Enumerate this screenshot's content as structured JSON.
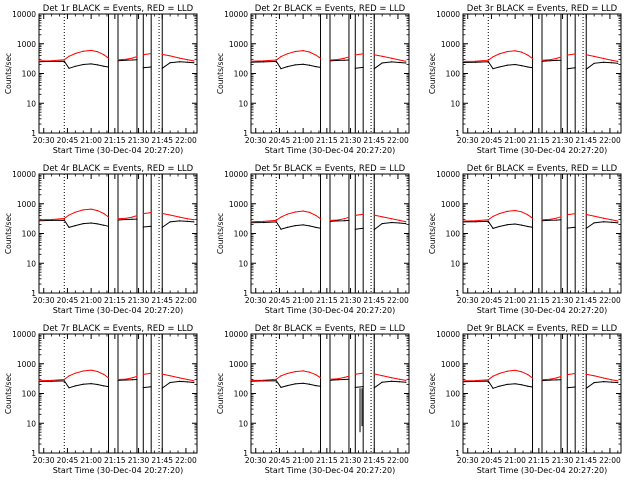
{
  "colors": {
    "events": "#000000",
    "lld": "#ff0000",
    "axes": "#000000",
    "background": "#ffffff"
  },
  "chart_data": [
    {
      "type": "line",
      "title": "Det 1r BLACK = Events, RED = LLD",
      "xlabel": "Start Time (30-Dec-04 20:27:20)",
      "ylabel": "Counts/sec",
      "x_ticks": [
        "20:30",
        "20:45",
        "21:00",
        "21:15",
        "21:30",
        "21:45",
        "22:00"
      ],
      "y_ticks": [
        "1",
        "10",
        "100",
        "1000",
        "10000"
      ],
      "y_scale": "log",
      "ylim": [
        1,
        10000
      ],
      "xlim": [
        "20:27",
        "22:07"
      ],
      "dotted_time_markers": [
        "20:43",
        "21:43"
      ],
      "gap_intervals": [
        [
          "21:11",
          "21:17"
        ],
        [
          "21:29",
          "21:33"
        ],
        [
          "21:38",
          "21:45"
        ]
      ],
      "x": [
        "20:27",
        "20:35",
        "20:43",
        "20:46",
        "20:50",
        "20:55",
        "21:00",
        "21:04",
        "21:08",
        "21:11",
        "21:17",
        "21:22",
        "21:26",
        "21:29",
        "21:33",
        "21:38",
        "21:45",
        "21:50",
        "21:56",
        "22:01",
        "22:05"
      ],
      "series": [
        {
          "name": "Events",
          "color": "#000000",
          "values": [
            250,
            255,
            260,
            150,
            175,
            200,
            210,
            195,
            175,
            165,
            270,
            280,
            285,
            290,
            155,
            165,
            150,
            230,
            250,
            240,
            230
          ]
        },
        {
          "name": "LLD",
          "color": "#ff0000",
          "values": [
            265,
            270,
            290,
            380,
            470,
            560,
            600,
            540,
            430,
            330,
            290,
            300,
            330,
            370,
            430,
            470,
            440,
            390,
            330,
            290,
            265
          ]
        }
      ]
    },
    {
      "type": "line",
      "title": "Det 2r BLACK = Events, RED = LLD",
      "xlabel": "Start Time (30-Dec-04 20:27:20)",
      "ylabel": "Counts/sec",
      "x_ticks": [
        "20:30",
        "20:45",
        "21:00",
        "21:15",
        "21:30",
        "21:45",
        "22:00"
      ],
      "y_ticks": [
        "1",
        "10",
        "100",
        "1000",
        "10000"
      ],
      "y_scale": "log",
      "ylim": [
        1,
        10000
      ],
      "xlim": [
        "20:27",
        "22:07"
      ],
      "dotted_time_markers": [
        "20:43",
        "21:43"
      ],
      "gap_intervals": [
        [
          "21:11",
          "21:17"
        ],
        [
          "21:29",
          "21:33"
        ],
        [
          "21:38",
          "21:45"
        ]
      ],
      "x": [
        "20:27",
        "20:35",
        "20:43",
        "20:46",
        "20:50",
        "20:55",
        "21:00",
        "21:04",
        "21:08",
        "21:11",
        "21:17",
        "21:22",
        "21:26",
        "21:29",
        "21:33",
        "21:38",
        "21:45",
        "21:50",
        "21:56",
        "22:01",
        "22:05"
      ],
      "series": [
        {
          "name": "Events",
          "color": "#000000",
          "values": [
            240,
            245,
            255,
            145,
            170,
            195,
            205,
            190,
            170,
            160,
            265,
            275,
            280,
            285,
            150,
            160,
            145,
            225,
            245,
            235,
            225
          ]
        },
        {
          "name": "LLD",
          "color": "#ff0000",
          "values": [
            260,
            265,
            285,
            370,
            460,
            550,
            590,
            530,
            420,
            325,
            285,
            295,
            325,
            365,
            420,
            460,
            430,
            380,
            325,
            285,
            260
          ]
        }
      ]
    },
    {
      "type": "line",
      "title": "Det 3r BLACK = Events, RED = LLD",
      "xlabel": "Start Time (30-Dec-04 20:27:20)",
      "ylabel": "Counts/sec",
      "x_ticks": [
        "20:30",
        "20:45",
        "21:00",
        "21:15",
        "21:30",
        "21:45",
        "22:00"
      ],
      "y_ticks": [
        "1",
        "10",
        "100",
        "1000",
        "10000"
      ],
      "y_scale": "log",
      "ylim": [
        1,
        10000
      ],
      "xlim": [
        "20:27",
        "22:07"
      ],
      "dotted_time_markers": [
        "20:43",
        "21:43"
      ],
      "gap_intervals": [
        [
          "21:11",
          "21:17"
        ],
        [
          "21:29",
          "21:33"
        ],
        [
          "21:38",
          "21:45"
        ]
      ],
      "x": [
        "20:27",
        "20:35",
        "20:43",
        "20:46",
        "20:50",
        "20:55",
        "21:00",
        "21:04",
        "21:08",
        "21:11",
        "21:17",
        "21:22",
        "21:26",
        "21:29",
        "21:33",
        "21:38",
        "21:45",
        "21:50",
        "21:56",
        "22:01",
        "22:05"
      ],
      "series": [
        {
          "name": "Events",
          "color": "#000000",
          "values": [
            235,
            240,
            250,
            145,
            165,
            190,
            200,
            185,
            165,
            155,
            260,
            270,
            275,
            280,
            145,
            155,
            140,
            220,
            240,
            230,
            220
          ]
        },
        {
          "name": "LLD",
          "color": "#ff0000",
          "values": [
            255,
            260,
            280,
            365,
            455,
            545,
            585,
            525,
            415,
            320,
            280,
            290,
            320,
            360,
            415,
            455,
            425,
            375,
            320,
            280,
            255
          ]
        }
      ]
    },
    {
      "type": "line",
      "title": "Det 4r BLACK = Events, RED = LLD",
      "xlabel": "Start Time (30-Dec-04 20:27:20)",
      "ylabel": "Counts/sec",
      "x_ticks": [
        "20:30",
        "20:45",
        "21:00",
        "21:15",
        "21:30",
        "21:45",
        "22:00"
      ],
      "y_ticks": [
        "1",
        "10",
        "100",
        "1000",
        "10000"
      ],
      "y_scale": "log",
      "ylim": [
        1,
        10000
      ],
      "xlim": [
        "20:27",
        "22:07"
      ],
      "dotted_time_markers": [
        "20:43",
        "21:43"
      ],
      "gap_intervals": [
        [
          "21:11",
          "21:17"
        ],
        [
          "21:29",
          "21:33"
        ],
        [
          "21:38",
          "21:45"
        ]
      ],
      "x": [
        "20:27",
        "20:35",
        "20:43",
        "20:46",
        "20:50",
        "20:55",
        "21:00",
        "21:04",
        "21:08",
        "21:11",
        "21:17",
        "21:22",
        "21:26",
        "21:29",
        "21:33",
        "21:38",
        "21:45",
        "21:50",
        "21:56",
        "22:01",
        "22:05"
      ],
      "series": [
        {
          "name": "Events",
          "color": "#000000",
          "values": [
            270,
            275,
            280,
            160,
            185,
            215,
            225,
            210,
            190,
            175,
            285,
            295,
            300,
            305,
            165,
            175,
            160,
            245,
            265,
            255,
            245
          ]
        },
        {
          "name": "LLD",
          "color": "#ff0000",
          "values": [
            290,
            295,
            320,
            420,
            520,
            620,
            660,
            590,
            470,
            360,
            315,
            325,
            355,
            400,
            465,
            505,
            470,
            420,
            355,
            315,
            290
          ]
        }
      ]
    },
    {
      "type": "line",
      "title": "Det 5r BLACK = Events, RED = LLD",
      "xlabel": "Start Time (30-Dec-04 20:27:20)",
      "ylabel": "Counts/sec",
      "x_ticks": [
        "20:30",
        "20:45",
        "21:00",
        "21:15",
        "21:30",
        "21:45",
        "22:00"
      ],
      "y_ticks": [
        "1",
        "10",
        "100",
        "1000",
        "10000"
      ],
      "y_scale": "log",
      "ylim": [
        1,
        10000
      ],
      "xlim": [
        "20:27",
        "22:07"
      ],
      "dotted_time_markers": [
        "20:43",
        "21:43"
      ],
      "gap_intervals": [
        [
          "21:11",
          "21:17"
        ],
        [
          "21:29",
          "21:33"
        ],
        [
          "21:38",
          "21:45"
        ]
      ],
      "x": [
        "20:27",
        "20:35",
        "20:43",
        "20:46",
        "20:50",
        "20:55",
        "21:00",
        "21:04",
        "21:08",
        "21:11",
        "21:17",
        "21:22",
        "21:26",
        "21:29",
        "21:33",
        "21:38",
        "21:45",
        "21:50",
        "21:56",
        "22:01",
        "22:05"
      ],
      "series": [
        {
          "name": "Events",
          "color": "#000000",
          "values": [
            230,
            235,
            245,
            140,
            160,
            185,
            195,
            180,
            160,
            150,
            255,
            265,
            270,
            275,
            140,
            150,
            135,
            215,
            235,
            225,
            215
          ]
        },
        {
          "name": "LLD",
          "color": "#ff0000",
          "values": [
            250,
            255,
            275,
            355,
            445,
            530,
            570,
            510,
            405,
            315,
            275,
            285,
            315,
            350,
            405,
            445,
            415,
            365,
            315,
            275,
            250
          ]
        }
      ]
    },
    {
      "type": "line",
      "title": "Det 6r BLACK = Events, RED = LLD",
      "xlabel": "Start Time (30-Dec-04 20:27:20)",
      "ylabel": "Counts/sec",
      "x_ticks": [
        "20:30",
        "20:45",
        "21:00",
        "21:15",
        "21:30",
        "21:45",
        "22:00"
      ],
      "y_ticks": [
        "1",
        "10",
        "100",
        "1000",
        "10000"
      ],
      "y_scale": "log",
      "ylim": [
        1,
        10000
      ],
      "xlim": [
        "20:27",
        "22:07"
      ],
      "dotted_time_markers": [
        "20:43",
        "21:43"
      ],
      "gap_intervals": [
        [
          "21:11",
          "21:17"
        ],
        [
          "21:29",
          "21:33"
        ],
        [
          "21:38",
          "21:45"
        ]
      ],
      "x": [
        "20:27",
        "20:35",
        "20:43",
        "20:46",
        "20:50",
        "20:55",
        "21:00",
        "21:04",
        "21:08",
        "21:11",
        "21:17",
        "21:22",
        "21:26",
        "21:29",
        "21:33",
        "21:38",
        "21:45",
        "21:50",
        "21:56",
        "22:01",
        "22:05"
      ],
      "series": [
        {
          "name": "Events",
          "color": "#000000",
          "values": [
            245,
            250,
            258,
            148,
            172,
            198,
            208,
            192,
            172,
            162,
            268,
            278,
            283,
            288,
            152,
            162,
            148,
            228,
            248,
            238,
            228
          ]
        },
        {
          "name": "LLD",
          "color": "#ff0000",
          "values": [
            262,
            268,
            288,
            375,
            465,
            555,
            595,
            535,
            425,
            328,
            288,
            298,
            328,
            368,
            425,
            465,
            435,
            385,
            328,
            288,
            262
          ]
        }
      ]
    },
    {
      "type": "line",
      "title": "Det 7r BLACK = Events, RED = LLD",
      "xlabel": "Start Time (30-Dec-04 20:27:20)",
      "ylabel": "Counts/sec",
      "x_ticks": [
        "20:30",
        "20:45",
        "21:00",
        "21:15",
        "21:30",
        "21:45",
        "22:00"
      ],
      "y_ticks": [
        "1",
        "10",
        "100",
        "1000",
        "10000"
      ],
      "y_scale": "log",
      "ylim": [
        1,
        10000
      ],
      "xlim": [
        "20:27",
        "22:07"
      ],
      "dotted_time_markers": [
        "20:43",
        "21:43"
      ],
      "gap_intervals": [
        [
          "21:11",
          "21:17"
        ],
        [
          "21:29",
          "21:33"
        ],
        [
          "21:38",
          "21:45"
        ]
      ],
      "x": [
        "20:27",
        "20:35",
        "20:43",
        "20:46",
        "20:50",
        "20:55",
        "21:00",
        "21:04",
        "21:08",
        "21:11",
        "21:17",
        "21:22",
        "21:26",
        "21:29",
        "21:33",
        "21:38",
        "21:45",
        "21:50",
        "21:56",
        "22:01",
        "22:05"
      ],
      "series": [
        {
          "name": "Events",
          "color": "#000000",
          "values": [
            255,
            260,
            265,
            155,
            180,
            205,
            215,
            200,
            180,
            170,
            275,
            285,
            290,
            295,
            158,
            168,
            152,
            235,
            255,
            245,
            235
          ]
        },
        {
          "name": "LLD",
          "color": "#ff0000",
          "values": [
            270,
            275,
            295,
            390,
            480,
            570,
            610,
            550,
            440,
            335,
            295,
            305,
            335,
            375,
            440,
            480,
            450,
            395,
            335,
            295,
            270
          ]
        }
      ]
    },
    {
      "type": "line",
      "title": "Det 8r BLACK = Events, RED = LLD",
      "xlabel": "Start Time (30-Dec-04 20:27:20)",
      "ylabel": "Counts/sec",
      "x_ticks": [
        "20:30",
        "20:45",
        "21:00",
        "21:15",
        "21:30",
        "21:45",
        "22:00"
      ],
      "y_ticks": [
        "1",
        "10",
        "100",
        "1000",
        "10000"
      ],
      "y_scale": "log",
      "ylim": [
        1,
        10000
      ],
      "xlim": [
        "20:27",
        "22:07"
      ],
      "dotted_time_markers": [
        "20:43",
        "21:43"
      ],
      "gap_intervals": [
        [
          "21:11",
          "21:17"
        ],
        [
          "21:29",
          "21:33"
        ],
        [
          "21:38",
          "21:45"
        ]
      ],
      "dropout": {
        "time": "21:36",
        "value": 5
      },
      "x": [
        "20:27",
        "20:35",
        "20:43",
        "20:46",
        "20:50",
        "20:55",
        "21:00",
        "21:04",
        "21:08",
        "21:11",
        "21:17",
        "21:22",
        "21:26",
        "21:29",
        "21:33",
        "21:38",
        "21:45",
        "21:50",
        "21:56",
        "22:01",
        "22:05"
      ],
      "series": [
        {
          "name": "Events",
          "color": "#000000",
          "values": [
            260,
            265,
            270,
            160,
            185,
            210,
            220,
            205,
            185,
            175,
            280,
            290,
            295,
            300,
            160,
            170,
            155,
            240,
            260,
            250,
            240
          ]
        },
        {
          "name": "LLD",
          "color": "#ff0000",
          "values": [
            275,
            280,
            300,
            395,
            470,
            545,
            575,
            520,
            430,
            340,
            300,
            315,
            345,
            385,
            445,
            485,
            455,
            400,
            340,
            300,
            275
          ]
        }
      ]
    },
    {
      "type": "line",
      "title": "Det 9r BLACK = Events, RED = LLD",
      "xlabel": "Start Time (30-Dec-04 20:27:20)",
      "ylabel": "Counts/sec",
      "x_ticks": [
        "20:30",
        "20:45",
        "21:00",
        "21:15",
        "21:30",
        "21:45",
        "22:00"
      ],
      "y_ticks": [
        "1",
        "10",
        "100",
        "1000",
        "10000"
      ],
      "y_scale": "log",
      "ylim": [
        1,
        10000
      ],
      "xlim": [
        "20:27",
        "22:07"
      ],
      "dotted_time_markers": [
        "20:43",
        "21:43"
      ],
      "gap_intervals": [
        [
          "21:11",
          "21:17"
        ],
        [
          "21:29",
          "21:33"
        ],
        [
          "21:38",
          "21:45"
        ]
      ],
      "x": [
        "20:27",
        "20:35",
        "20:43",
        "20:46",
        "20:50",
        "20:55",
        "21:00",
        "21:04",
        "21:08",
        "21:11",
        "21:17",
        "21:22",
        "21:26",
        "21:29",
        "21:33",
        "21:38",
        "21:45",
        "21:50",
        "21:56",
        "22:01",
        "22:05"
      ],
      "series": [
        {
          "name": "Events",
          "color": "#000000",
          "values": [
            250,
            255,
            262,
            150,
            176,
            202,
            212,
            196,
            176,
            166,
            272,
            282,
            287,
            292,
            155,
            165,
            150,
            232,
            252,
            242,
            232
          ]
        },
        {
          "name": "LLD",
          "color": "#ff0000",
          "values": [
            266,
            271,
            292,
            382,
            472,
            562,
            602,
            542,
            432,
            332,
            292,
            302,
            332,
            372,
            432,
            472,
            442,
            392,
            332,
            292,
            266
          ]
        }
      ]
    }
  ]
}
